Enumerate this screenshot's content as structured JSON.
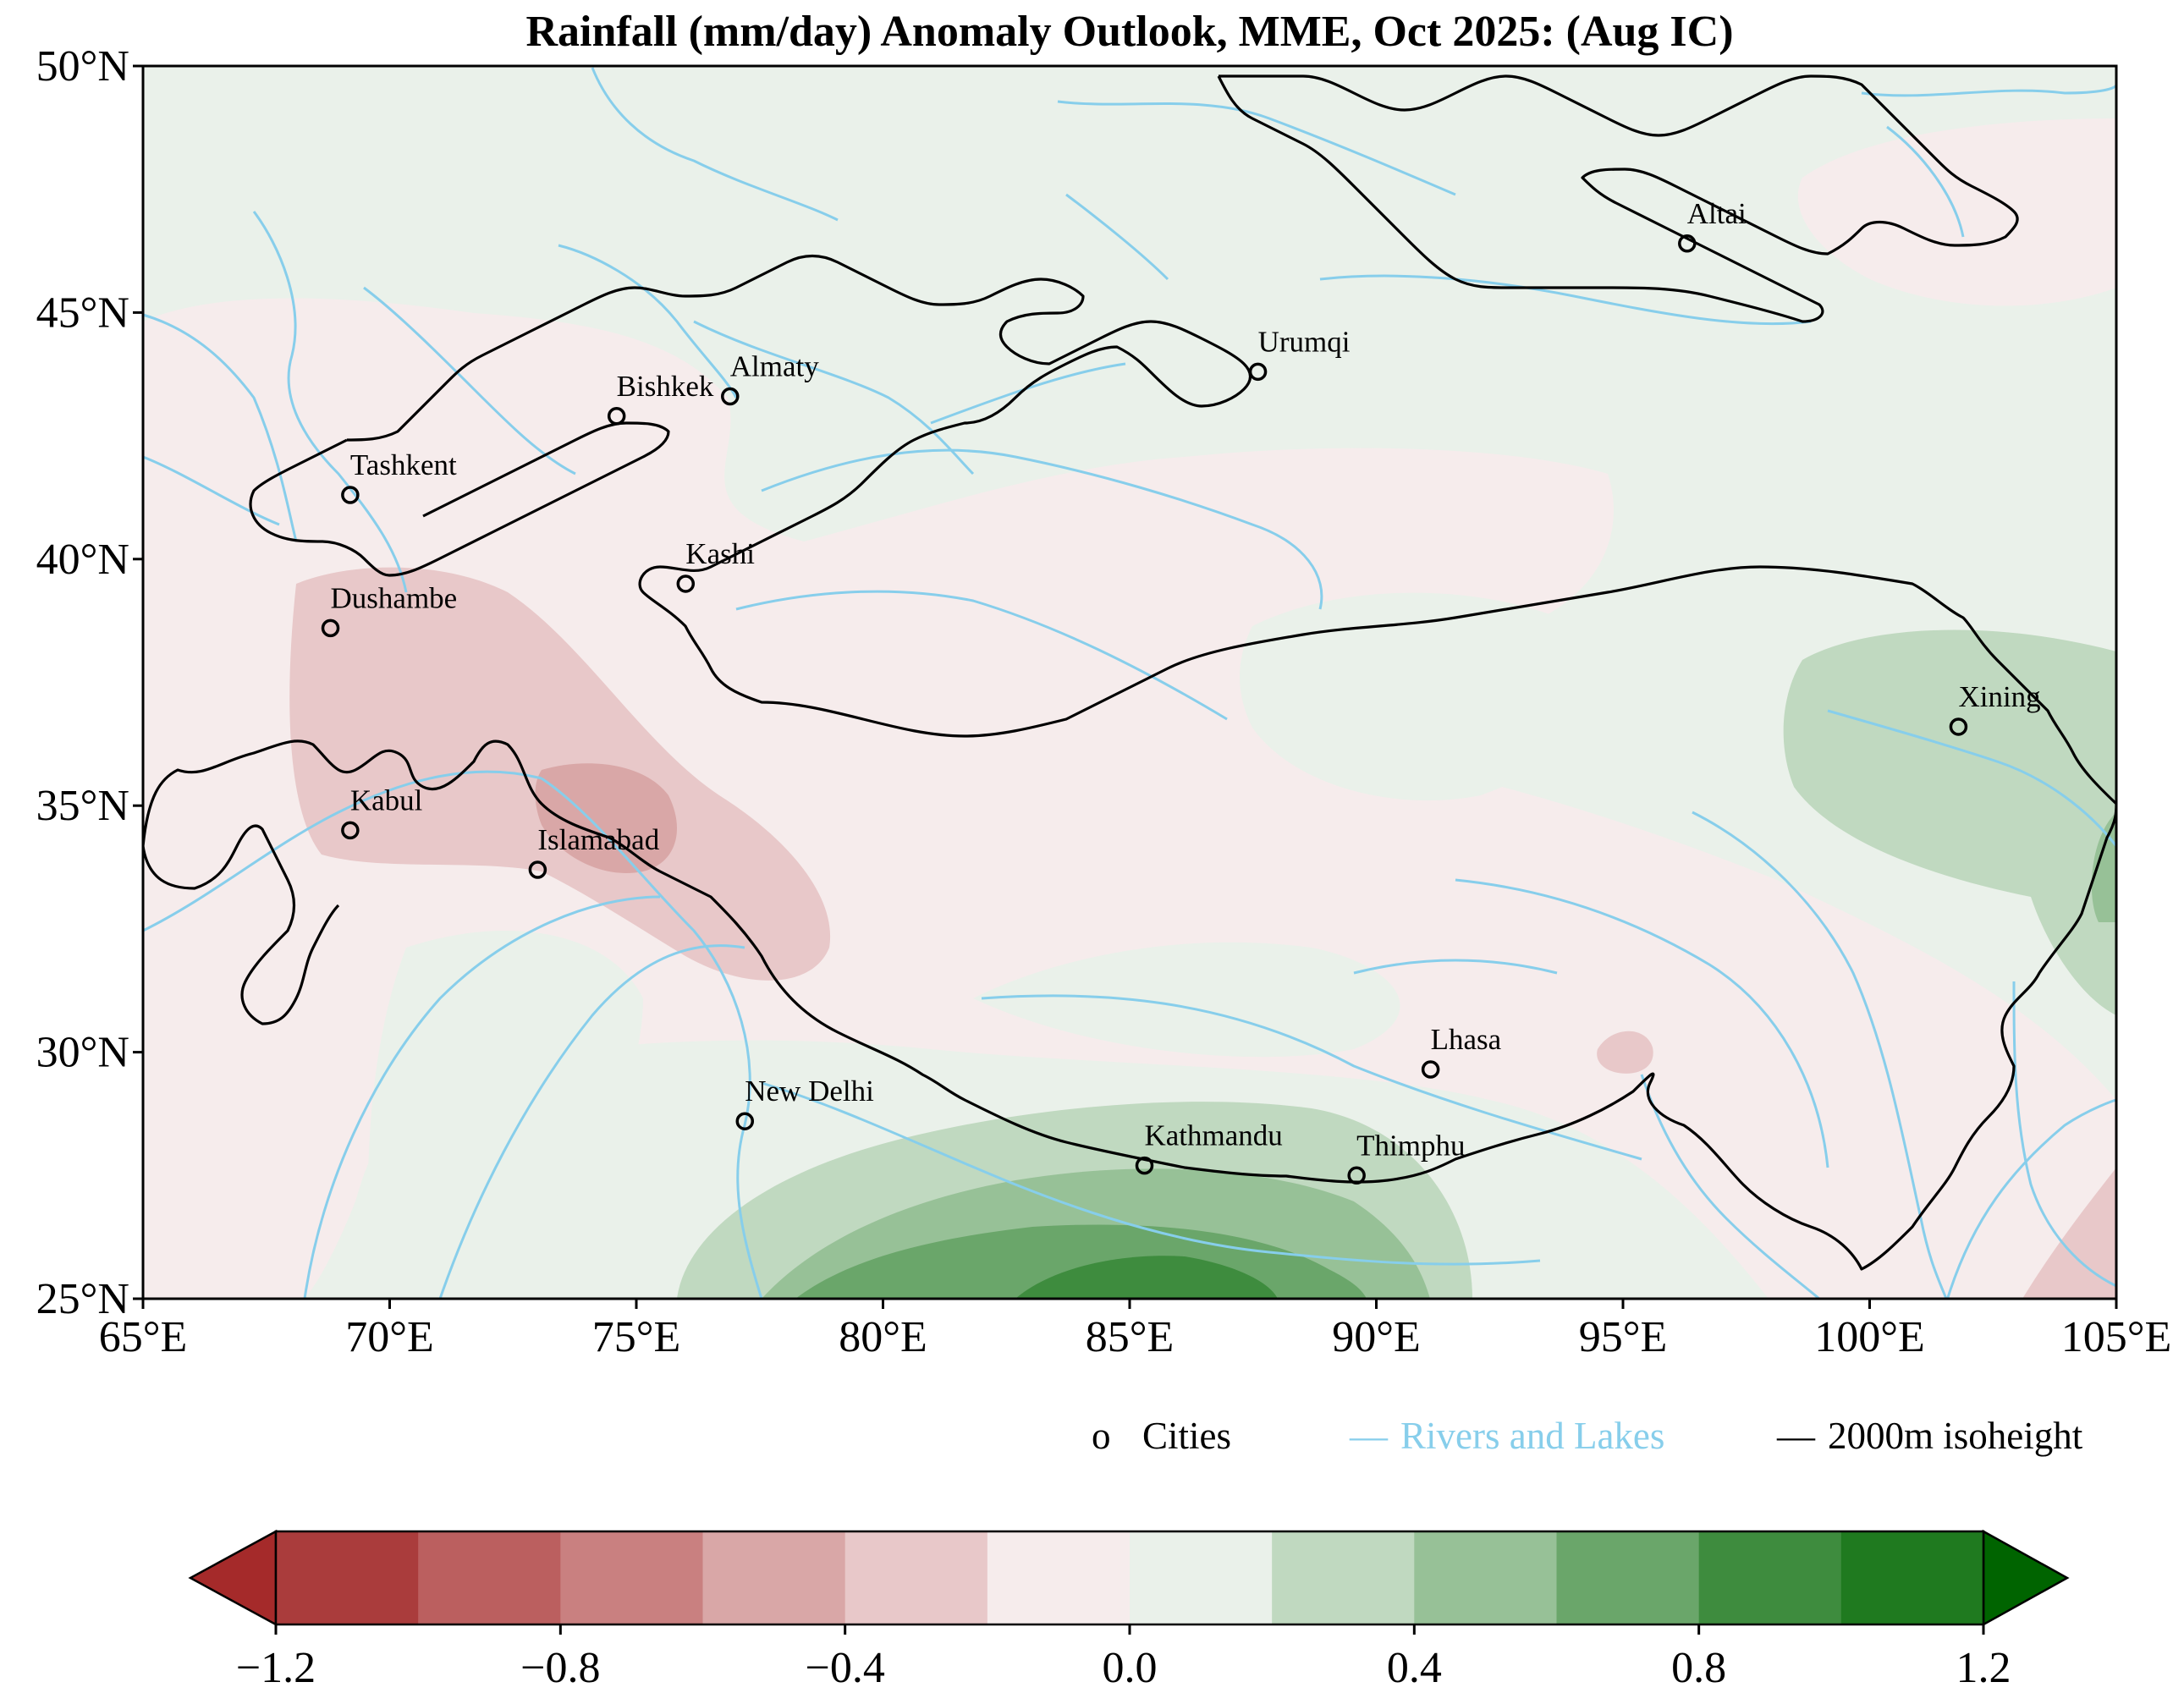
{
  "title": "Rainfall (mm/day) Anomaly Outlook, MME, Oct  2025:  (Aug IC)",
  "map": {
    "lon_range": [
      65,
      105
    ],
    "lat_range": [
      25,
      50
    ],
    "x_ticks": [
      "65°E",
      "70°E",
      "75°E",
      "80°E",
      "85°E",
      "90°E",
      "95°E",
      "100°E",
      "105°E"
    ],
    "y_ticks": [
      "50°N",
      "45°N",
      "40°N",
      "35°N",
      "30°N",
      "25°N"
    ],
    "cities": [
      {
        "name": "Altai",
        "lon": 96.3,
        "lat": 46.4
      },
      {
        "name": "Urumqi",
        "lon": 87.6,
        "lat": 43.8
      },
      {
        "name": "Almaty",
        "lon": 76.9,
        "lat": 43.3
      },
      {
        "name": "Bishkek",
        "lon": 74.6,
        "lat": 42.9
      },
      {
        "name": "Tashkent",
        "lon": 69.2,
        "lat": 41.3
      },
      {
        "name": "Kashi",
        "lon": 76.0,
        "lat": 39.5
      },
      {
        "name": "Dushambe",
        "lon": 68.8,
        "lat": 38.6
      },
      {
        "name": "Xining",
        "lon": 101.8,
        "lat": 36.6
      },
      {
        "name": "Kabul",
        "lon": 69.2,
        "lat": 34.5
      },
      {
        "name": "Islamabad",
        "lon": 73.0,
        "lat": 33.7
      },
      {
        "name": "Lhasa",
        "lon": 91.1,
        "lat": 29.65
      },
      {
        "name": "New Delhi",
        "lon": 77.2,
        "lat": 28.6
      },
      {
        "name": "Kathmandu",
        "lon": 85.3,
        "lat": 27.7
      },
      {
        "name": "Thimphu",
        "lon": 89.6,
        "lat": 27.5
      }
    ]
  },
  "legend": {
    "cities_marker": "o",
    "cities_label": "Cities",
    "rivers_marker": "—",
    "rivers_label": "Rivers and Lakes",
    "isoheight_marker": "—",
    "isoheight_label": "2000m isoheight"
  },
  "colorbar": {
    "ticks": [
      "−1.2",
      "−0.8",
      "−0.4",
      "0.0",
      "0.4",
      "0.8",
      "1.2"
    ],
    "levels": [
      -1.2,
      -1.0,
      -0.8,
      -0.6,
      -0.4,
      -0.2,
      0.0,
      0.2,
      0.4,
      0.6,
      0.8,
      1.0,
      1.2
    ],
    "colors": [
      "#aa3c3c",
      "#bb5f5f",
      "#c98080",
      "#d9a7a7",
      "#e8c8c9",
      "#f6ecec",
      "#eaf1ea",
      "#c0d9c0",
      "#97c197",
      "#6aa66a",
      "#3e8c3e",
      "#1f7a1f"
    ],
    "under_color": "#a52a2a",
    "over_color": "#006400"
  },
  "colors": {
    "rivers": "#87ceeb",
    "isoheight": "#000000"
  }
}
